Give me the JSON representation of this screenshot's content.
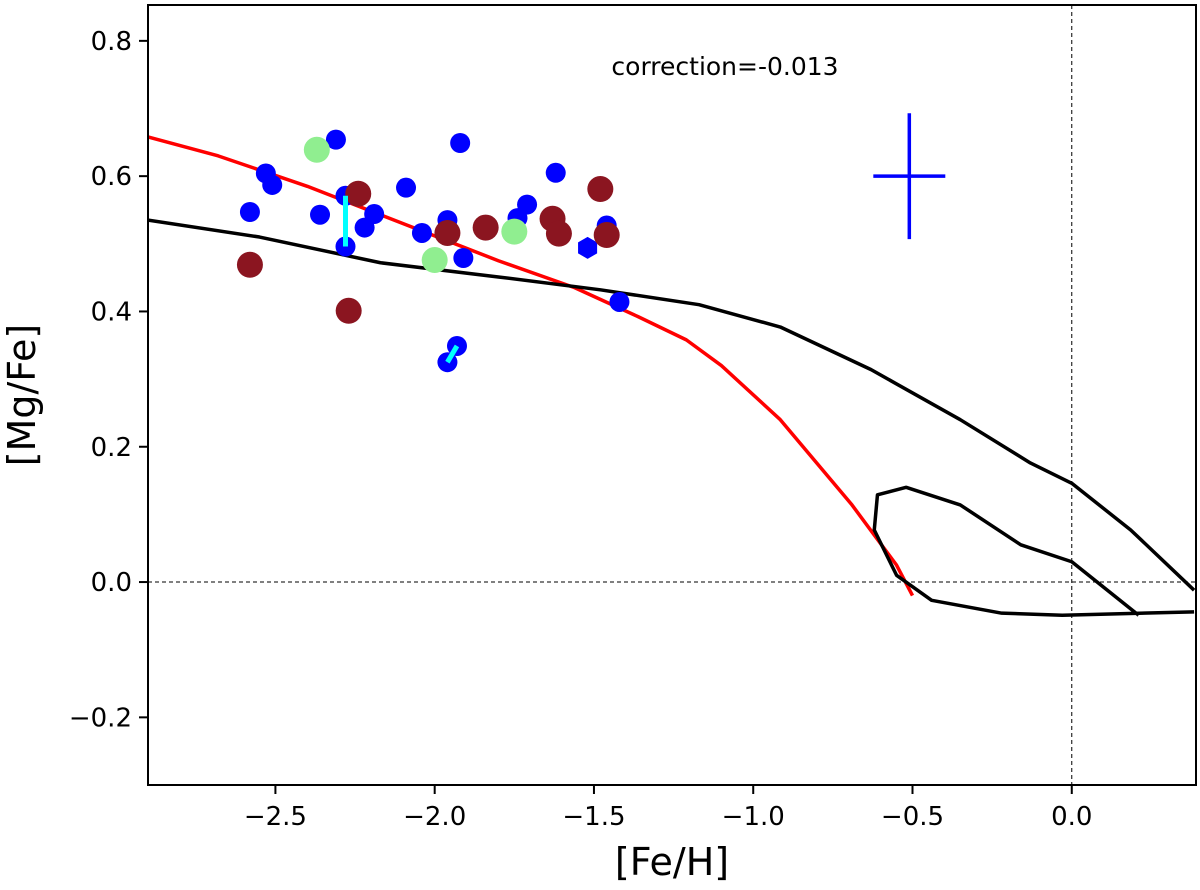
{
  "chart_data": {
    "type": "scatter",
    "title": "",
    "xlabel": "[Fe/H]",
    "ylabel": "[Mg/Fe]",
    "xlim": [
      -2.9,
      0.39
    ],
    "ylim": [
      -0.3,
      0.853
    ],
    "xticks": [
      -2.5,
      -2.0,
      -1.5,
      -1.0,
      -0.5,
      0.0
    ],
    "xtick_labels": [
      "−2.5",
      "−2.0",
      "−1.5",
      "−1.0",
      "−0.5",
      "0.0"
    ],
    "yticks": [
      -0.2,
      0.0,
      0.2,
      0.4,
      0.6,
      0.8
    ],
    "ytick_labels": [
      "−0.2",
      "0.0",
      "0.2",
      "0.4",
      "0.6",
      "0.8"
    ],
    "annotation": "correction=-0.013",
    "reference_lines": {
      "x": 0.0,
      "y": 0.0
    },
    "series": [
      {
        "name": "blue",
        "color": "#0000ff",
        "marker": "circle",
        "points": [
          [
            -2.31,
            0.654
          ],
          [
            -1.92,
            0.649
          ],
          [
            -2.53,
            0.604
          ],
          [
            -2.51,
            0.587
          ],
          [
            -2.09,
            0.583
          ],
          [
            -1.62,
            0.605
          ],
          [
            -2.58,
            0.547
          ],
          [
            -2.36,
            0.543
          ],
          [
            -2.28,
            0.571
          ],
          [
            -2.19,
            0.544
          ],
          [
            -2.22,
            0.524
          ],
          [
            -2.04,
            0.516
          ],
          [
            -1.96,
            0.535
          ],
          [
            -1.71,
            0.558
          ],
          [
            -1.74,
            0.538
          ],
          [
            -1.46,
            0.527
          ],
          [
            -2.28,
            0.496
          ],
          [
            -1.91,
            0.479
          ],
          [
            -1.42,
            0.414
          ],
          [
            -1.93,
            0.349
          ],
          [
            -1.96,
            0.325
          ]
        ]
      },
      {
        "name": "blue-hexagon",
        "color": "#0000ff",
        "marker": "hexagon",
        "points": [
          [
            -1.52,
            0.494
          ]
        ]
      },
      {
        "name": "maroon",
        "color": "#8b1520",
        "marker": "circle",
        "points": [
          [
            -2.24,
            0.574
          ],
          [
            -1.48,
            0.581
          ],
          [
            -1.96,
            0.516
          ],
          [
            -1.84,
            0.524
          ],
          [
            -1.63,
            0.537
          ],
          [
            -1.61,
            0.515
          ],
          [
            -1.46,
            0.513
          ],
          [
            -2.58,
            0.469
          ],
          [
            -2.27,
            0.401
          ]
        ]
      },
      {
        "name": "lightgreen",
        "color": "#90ee90",
        "marker": "circle",
        "points": [
          [
            -2.37,
            0.639
          ],
          [
            -1.75,
            0.518
          ],
          [
            -2.0,
            0.476
          ]
        ]
      }
    ],
    "connectors": {
      "color": "#00ffff",
      "segments": [
        [
          [
            -2.28,
            0.571
          ],
          [
            -2.28,
            0.496
          ]
        ],
        [
          [
            -1.96,
            0.325
          ],
          [
            -1.93,
            0.349
          ]
        ]
      ]
    },
    "error_bar": {
      "color": "#0000ff",
      "x": -0.51,
      "y": 0.6,
      "xerr": 0.113,
      "yerr": 0.093
    },
    "lines": [
      {
        "name": "red-model",
        "color": "#ff0000",
        "points": [
          [
            -2.9,
            0.658
          ],
          [
            -2.68,
            0.63
          ],
          [
            -2.4,
            0.585
          ],
          [
            -2.1,
            0.53
          ],
          [
            -1.8,
            0.475
          ],
          [
            -1.56,
            0.435
          ],
          [
            -1.36,
            0.392
          ],
          [
            -1.21,
            0.358
          ],
          [
            -1.1,
            0.32
          ],
          [
            -0.915,
            0.24
          ],
          [
            -0.69,
            0.114
          ],
          [
            -0.55,
            0.025
          ],
          [
            -0.5,
            -0.02
          ]
        ]
      },
      {
        "name": "black-model-1",
        "color": "#000000",
        "points": [
          [
            -2.9,
            0.535
          ],
          [
            -2.55,
            0.51
          ],
          [
            -2.17,
            0.472
          ],
          [
            -1.8,
            0.451
          ],
          [
            -1.48,
            0.432
          ],
          [
            -1.17,
            0.41
          ],
          [
            -0.915,
            0.377
          ],
          [
            -0.63,
            0.314
          ],
          [
            -0.35,
            0.24
          ],
          [
            -0.13,
            0.176
          ],
          [
            0,
            0.146
          ],
          [
            0.185,
            0.077
          ],
          [
            0.384,
            -0.012
          ]
        ]
      },
      {
        "name": "black-model-2",
        "color": "#000000",
        "points": [
          [
            0.21,
            -0.049
          ],
          [
            0.0,
            0.03
          ],
          [
            -0.16,
            0.055
          ],
          [
            -0.35,
            0.114
          ],
          [
            -0.52,
            0.14
          ],
          [
            -0.61,
            0.129
          ],
          [
            -0.62,
            0.077
          ],
          [
            -0.55,
            0.01
          ],
          [
            -0.44,
            -0.027
          ],
          [
            -0.22,
            -0.046
          ],
          [
            -0.03,
            -0.049
          ],
          [
            0.384,
            -0.044
          ]
        ]
      }
    ]
  }
}
